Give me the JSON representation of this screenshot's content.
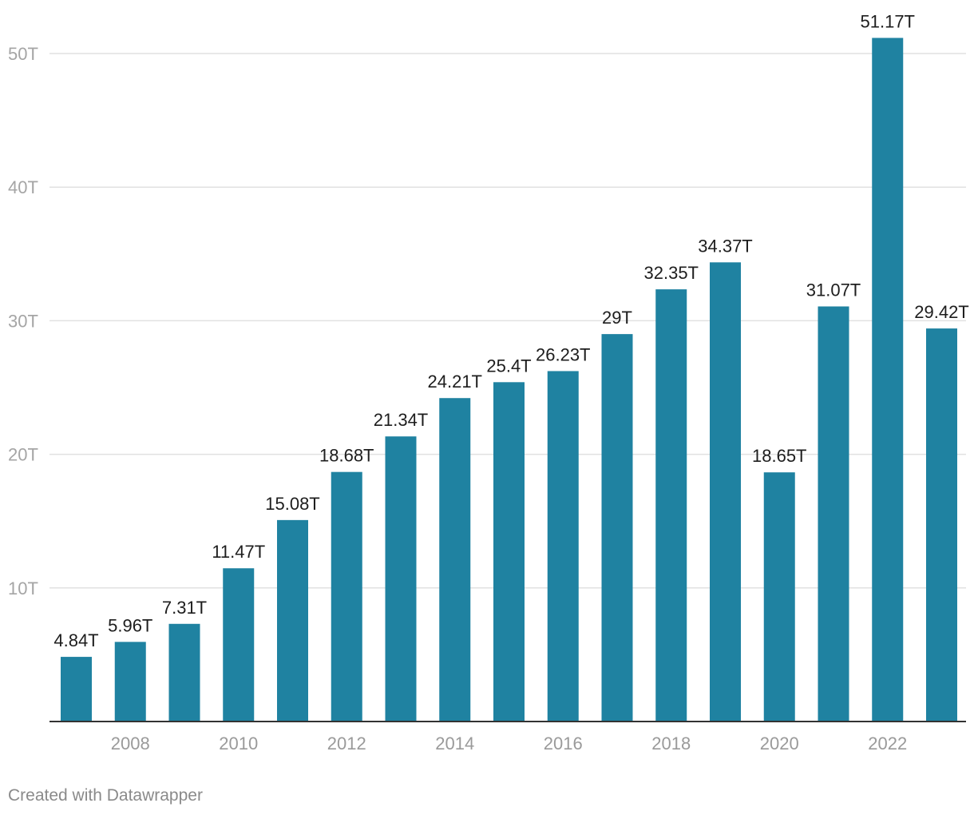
{
  "chart_data": {
    "type": "bar",
    "categories": [
      "2007",
      "2008",
      "2009",
      "2010",
      "2011",
      "2012",
      "2013",
      "2014",
      "2015",
      "2016",
      "2017",
      "2018",
      "2019",
      "2020",
      "2021",
      "2022",
      "2023"
    ],
    "values": [
      4.84,
      5.96,
      7.31,
      11.47,
      15.08,
      18.68,
      21.34,
      24.21,
      25.4,
      26.23,
      29,
      32.35,
      34.37,
      18.65,
      31.07,
      51.17,
      29.42
    ],
    "value_labels": [
      "4.84T",
      "5.96T",
      "7.31T",
      "11.47T",
      "15.08T",
      "18.68T",
      "21.34T",
      "24.21T",
      "25.4T",
      "26.23T",
      "29T",
      "32.35T",
      "34.37T",
      "18.65T",
      "31.07T",
      "51.17T",
      "29.42T"
    ],
    "x_tick_labels": [
      "2008",
      "2010",
      "2012",
      "2014",
      "2016",
      "2018",
      "2020",
      "2022"
    ],
    "y_ticks": [
      10,
      20,
      30,
      40,
      50
    ],
    "y_tick_labels": [
      "10T",
      "20T",
      "30T",
      "40T",
      "50T"
    ],
    "ylim": [
      0,
      54
    ],
    "title": "",
    "xlabel": "",
    "ylabel": "",
    "grid": true,
    "bar_color": "#1f82a1"
  },
  "footer": {
    "credit": "Created with Datawrapper"
  }
}
